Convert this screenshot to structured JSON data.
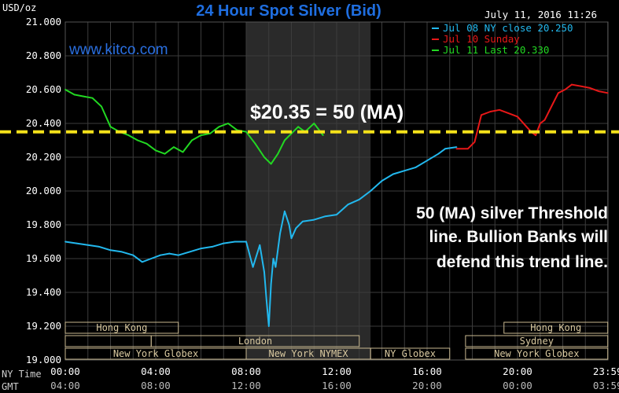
{
  "chart_data": {
    "type": "line",
    "title": "24 Hour Spot Silver (Bid)",
    "ylabel": "USD/oz",
    "timestamp": "July 11, 2016 11:26",
    "watermark": "www.kitco.com",
    "ylim": [
      19.0,
      21.0
    ],
    "yticks": [
      "21.000",
      "20.800",
      "20.600",
      "20.400",
      "20.200",
      "20.000",
      "19.800",
      "19.600",
      "19.400",
      "19.200",
      "19.000"
    ],
    "xlim": [
      0,
      24
    ],
    "xticks_ny": [
      "00:00",
      "04:00",
      "08:00",
      "12:00",
      "16:00",
      "20:00",
      "23:59"
    ],
    "xticks_gmt": [
      "04:00",
      "08:00",
      "12:00",
      "16:00",
      "20:00",
      "00:00",
      "03:59"
    ],
    "x_row_label_ny": "NY Time",
    "x_row_label_gmt": "GMT",
    "colors": {
      "background": "#000000",
      "grid": "#3c3c3c",
      "axis_text": "#ffffff",
      "title": "#1f6ee0",
      "shade": "#2a2a2a",
      "session_box": "#c8b890",
      "session_text": "#d9c9a0",
      "ma_line": "#f5e11a"
    },
    "legend": [
      {
        "label": "Jul 08 NY close 20.250",
        "color": "#22b8ee"
      },
      {
        "label": "Jul 10 Sunday",
        "color": "#e81818"
      },
      {
        "label": "Jul 11 Last 20.330",
        "color": "#22d822"
      }
    ],
    "series": [
      {
        "name": "Jul 08 NY close 20.250",
        "color": "#22b8ee",
        "x": [
          0,
          0.5,
          1,
          1.5,
          2,
          2.5,
          3,
          3.4,
          3.8,
          4.2,
          4.6,
          5,
          5.5,
          6,
          6.5,
          7,
          7.5,
          8,
          8.3,
          8.6,
          8.8,
          8.9,
          9,
          9.1,
          9.2,
          9.3,
          9.5,
          9.7,
          9.9,
          10,
          10.2,
          10.5,
          11,
          11.5,
          12,
          12.5,
          13,
          13.5,
          14,
          14.5,
          15,
          15.5,
          16,
          16.5,
          16.8,
          17.3
        ],
        "y": [
          19.7,
          19.69,
          19.68,
          19.67,
          19.65,
          19.64,
          19.62,
          19.58,
          19.6,
          19.62,
          19.63,
          19.62,
          19.64,
          19.66,
          19.67,
          19.69,
          19.7,
          19.7,
          19.55,
          19.68,
          19.52,
          19.35,
          19.2,
          19.45,
          19.6,
          19.55,
          19.75,
          19.88,
          19.8,
          19.72,
          19.78,
          19.82,
          19.83,
          19.85,
          19.86,
          19.92,
          19.95,
          20.0,
          20.06,
          20.1,
          20.12,
          20.14,
          20.18,
          20.22,
          20.25,
          20.26
        ]
      },
      {
        "name": "Jul 10 Sunday",
        "color": "#e81818",
        "x": [
          17.3,
          17.8,
          18.1,
          18.4,
          18.8,
          19.2,
          19.6,
          20,
          20.4,
          20.6,
          20.8,
          21.0,
          21.2,
          21.5,
          21.8,
          22.1,
          22.4,
          22.8,
          23.2,
          23.6,
          23.99
        ],
        "y": [
          20.25,
          20.25,
          20.29,
          20.45,
          20.47,
          20.48,
          20.46,
          20.44,
          20.38,
          20.35,
          20.33,
          20.4,
          20.42,
          20.5,
          20.58,
          20.6,
          20.63,
          20.62,
          20.61,
          20.59,
          20.58
        ]
      },
      {
        "name": "Jul 11 Last 20.330",
        "color": "#22d822",
        "x": [
          0,
          0.4,
          0.8,
          1.2,
          1.6,
          2,
          2.4,
          2.8,
          3.2,
          3.6,
          4,
          4.4,
          4.8,
          5.2,
          5.6,
          6,
          6.4,
          6.8,
          7.2,
          7.6,
          8,
          8.4,
          8.8,
          9.1,
          9.4,
          9.7,
          10,
          10.3,
          10.6,
          11,
          11.4
        ],
        "y": [
          20.6,
          20.57,
          20.56,
          20.55,
          20.5,
          20.38,
          20.35,
          20.33,
          20.3,
          20.28,
          20.24,
          20.22,
          20.26,
          20.23,
          20.3,
          20.33,
          20.34,
          20.38,
          20.4,
          20.36,
          20.35,
          20.28,
          20.2,
          20.16,
          20.22,
          20.3,
          20.34,
          20.38,
          20.35,
          20.4,
          20.33
        ]
      }
    ],
    "reference_line": {
      "y": 20.35,
      "label": "$20.35 = 50 (MA)"
    },
    "annotation": {
      "lines": [
        "50 (MA) silver Threshold",
        "line.  Bullion Banks will",
        "defend this trend line."
      ]
    },
    "shaded_region": {
      "x0": 8,
      "x1": 13.5
    },
    "sessions": [
      {
        "label": "Hong Kong",
        "x0": 0,
        "x1": 5,
        "row": 1
      },
      {
        "label": "London",
        "x0": 3.8,
        "x1": 13,
        "row": 2
      },
      {
        "label": "New York Globex",
        "x0": 0,
        "x1": 8.0,
        "row": 3
      },
      {
        "label": "New York NYMEX",
        "x0": 8.0,
        "x1": 13.5,
        "row": 3
      },
      {
        "label": "NY Globex",
        "x0": 13.5,
        "x1": 17.0,
        "row": 3
      },
      {
        "label": "Hong Kong",
        "x0": 19.4,
        "x1": 23.99,
        "row": 1
      },
      {
        "label": "Sydney",
        "x0": 17.7,
        "x1": 23.99,
        "row": 2
      },
      {
        "label": "New York Globex",
        "x0": 17.7,
        "x1": 23.99,
        "row": 3
      }
    ]
  }
}
